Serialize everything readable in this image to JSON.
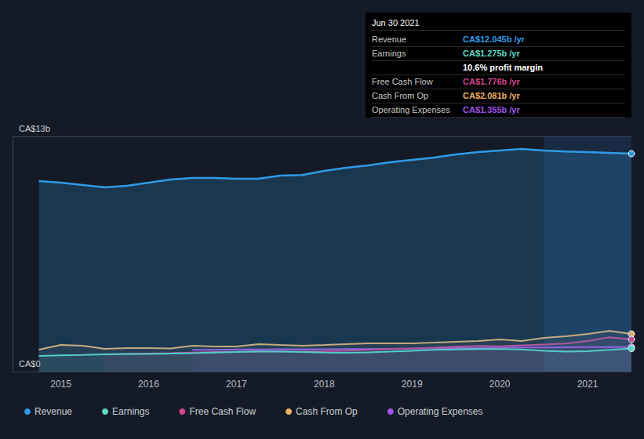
{
  "chart_data": {
    "type": "line",
    "x": [
      2014.75,
      2015.0,
      2015.25,
      2015.5,
      2015.75,
      2016.0,
      2016.25,
      2016.5,
      2016.75,
      2017.0,
      2017.25,
      2017.5,
      2017.75,
      2018.0,
      2018.25,
      2018.5,
      2018.75,
      2019.0,
      2019.25,
      2019.5,
      2019.75,
      2020.0,
      2020.25,
      2020.5,
      2020.75,
      2021.0,
      2021.25,
      2021.5
    ],
    "series": [
      {
        "name": "Revenue",
        "color": "#2f9be6",
        "values": [
          10.53,
          10.44,
          10.31,
          10.18,
          10.27,
          10.44,
          10.62,
          10.7,
          10.7,
          10.66,
          10.66,
          10.83,
          10.87,
          11.09,
          11.27,
          11.4,
          11.57,
          11.7,
          11.83,
          12.0,
          12.13,
          12.22,
          12.31,
          12.22,
          12.17,
          12.13,
          12.09,
          12.045
        ]
      },
      {
        "name": "Earnings",
        "color": "#5fd9c2",
        "values": [
          0.87,
          0.9,
          0.92,
          0.95,
          0.97,
          0.98,
          1.0,
          1.02,
          1.05,
          1.08,
          1.1,
          1.1,
          1.08,
          1.05,
          1.04,
          1.06,
          1.1,
          1.15,
          1.2,
          1.22,
          1.25,
          1.25,
          1.22,
          1.15,
          1.1,
          1.13,
          1.2,
          1.275
        ]
      },
      {
        "name": "Free Cash Flow",
        "color": "#d4448c",
        "values": [
          null,
          null,
          null,
          0.95,
          0.97,
          1.0,
          1.02,
          1.05,
          1.08,
          1.1,
          1.13,
          1.12,
          1.12,
          1.13,
          1.15,
          1.2,
          1.25,
          1.28,
          1.32,
          1.38,
          1.42,
          1.4,
          1.45,
          1.5,
          1.55,
          1.69,
          1.9,
          1.776
        ]
      },
      {
        "name": "Cash From Op",
        "color": "#efb062",
        "values": [
          1.21,
          1.47,
          1.43,
          1.26,
          1.3,
          1.3,
          1.28,
          1.43,
          1.39,
          1.39,
          1.52,
          1.47,
          1.43,
          1.47,
          1.52,
          1.56,
          1.56,
          1.56,
          1.6,
          1.65,
          1.69,
          1.78,
          1.69,
          1.86,
          1.95,
          2.08,
          2.25,
          2.081
        ]
      },
      {
        "name": "Operating Expenses",
        "color": "#a052ec",
        "values": [
          null,
          null,
          null,
          null,
          null,
          null,
          null,
          1.2,
          1.2,
          1.22,
          1.22,
          1.23,
          1.23,
          1.24,
          1.25,
          1.25,
          1.26,
          1.27,
          1.28,
          1.3,
          1.3,
          1.32,
          1.33,
          1.33,
          1.34,
          1.35,
          1.36,
          1.355
        ]
      }
    ],
    "xlim": [
      2014.45,
      2021.5
    ],
    "xticks": [
      2015,
      2016,
      2017,
      2018,
      2019,
      2020,
      2021
    ],
    "ylim": [
      0,
      13
    ],
    "yticks": [
      {
        "value": 0,
        "label": "CA$0"
      },
      {
        "value": 13,
        "label": "CA$13b"
      }
    ],
    "highlight_range": [
      2020.5,
      2021.5
    ],
    "legend": "bottom",
    "grid": true,
    "annotations": {
      "date": "Jun 30 2021",
      "rows": [
        {
          "label": "Revenue",
          "value": "CA$12.045b /yr",
          "color": "#2f9be6"
        },
        {
          "label": "Earnings",
          "value": "CA$1.275b /yr",
          "color": "#5fd9c2"
        },
        {
          "label": "",
          "value": "10.6% profit margin",
          "color": "#ffffff"
        },
        {
          "label": "Free Cash Flow",
          "value": "CA$1.776b /yr",
          "color": "#d4448c"
        },
        {
          "label": "Cash From Op",
          "value": "CA$2.081b /yr",
          "color": "#efb062"
        },
        {
          "label": "Operating Expenses",
          "value": "CA$1.355b /yr",
          "color": "#a052ec"
        }
      ]
    }
  }
}
